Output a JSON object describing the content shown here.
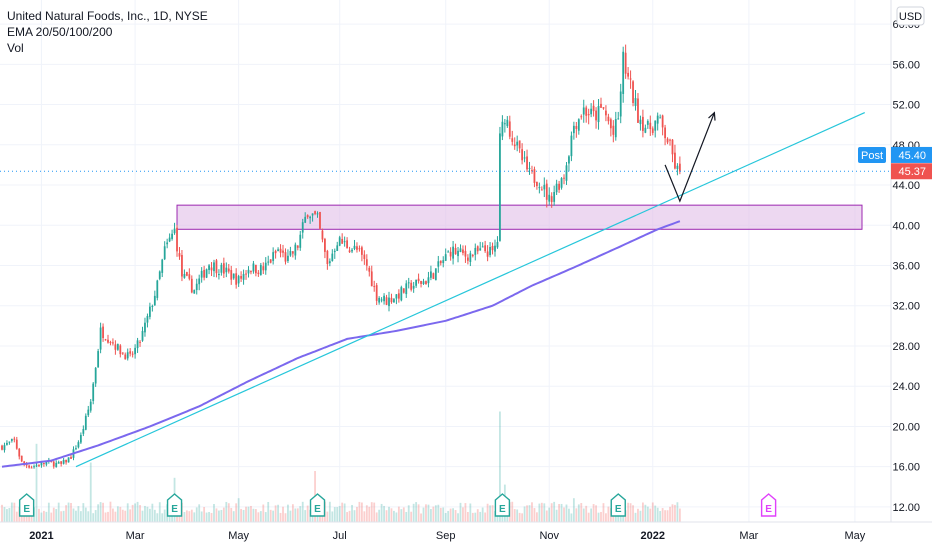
{
  "header": {
    "title": "United Natural Foods, Inc., 1D, NYSE",
    "indicator": "EMA 20/50/100/200",
    "volume_label": "Vol"
  },
  "axis": {
    "currency": "USD",
    "y_ticks": [
      "60.00",
      "56.00",
      "52.00",
      "48.00",
      "44.00",
      "40.00",
      "36.00",
      "32.00",
      "28.00",
      "24.00",
      "20.00",
      "16.00",
      "12.00"
    ],
    "x_ticks": [
      {
        "label": "2021",
        "bold": true,
        "idx": 16
      },
      {
        "label": "Mar",
        "bold": false,
        "idx": 54
      },
      {
        "label": "May",
        "bold": false,
        "idx": 96
      },
      {
        "label": "Jul",
        "bold": false,
        "idx": 137
      },
      {
        "label": "Sep",
        "bold": false,
        "idx": 180
      },
      {
        "label": "Nov",
        "bold": false,
        "idx": 222
      },
      {
        "label": "2022",
        "bold": true,
        "idx": 264
      },
      {
        "label": "Mar",
        "bold": false,
        "idx": 303
      },
      {
        "label": "May",
        "bold": false,
        "idx": 346
      }
    ]
  },
  "price_tags": {
    "post_label": "Post",
    "post_value": "45.40",
    "last_value": "45.37"
  },
  "colors": {
    "up": "#26a69a",
    "down": "#ef5350",
    "ema": "#7b68ee",
    "trendline": "#26c6da",
    "zone_fill": "#e1bee7",
    "zone_border": "#9c27b0",
    "post_tag": "#2196f3",
    "last_tag": "#ef5350",
    "earnings_past": "#26a69a",
    "earnings_future": "#e040fb"
  },
  "events": {
    "earnings_label": "E",
    "past_idx": [
      10,
      70,
      128,
      203,
      250
    ],
    "future_idx": [
      311
    ]
  },
  "chart_data": {
    "type": "candlestick",
    "title": "United Natural Foods, Inc., 1D, NYSE",
    "ylim": [
      10.5,
      61.5
    ],
    "x_range": [
      "2020-12-10",
      "2022-05-20"
    ],
    "anchors": [
      [
        0,
        18.0
      ],
      [
        5,
        18.6
      ],
      [
        8,
        16.4
      ],
      [
        12,
        16.0
      ],
      [
        18,
        16.4
      ],
      [
        24,
        16.2
      ],
      [
        28,
        17.0
      ],
      [
        32,
        19.0
      ],
      [
        36,
        22.5
      ],
      [
        40,
        29.5
      ],
      [
        44,
        28.6
      ],
      [
        48,
        27.5
      ],
      [
        52,
        26.8
      ],
      [
        56,
        28.5
      ],
      [
        60,
        31.5
      ],
      [
        63,
        34.0
      ],
      [
        66,
        37.5
      ],
      [
        70,
        39.5
      ],
      [
        73,
        35.0
      ],
      [
        78,
        33.6
      ],
      [
        84,
        36.2
      ],
      [
        90,
        35.5
      ],
      [
        96,
        34.5
      ],
      [
        100,
        35.8
      ],
      [
        106,
        35.6
      ],
      [
        112,
        37.5
      ],
      [
        116,
        36.5
      ],
      [
        120,
        38.0
      ],
      [
        124,
        41.5
      ],
      [
        128,
        40.5
      ],
      [
        132,
        36.0
      ],
      [
        136,
        38.5
      ],
      [
        140,
        38.0
      ],
      [
        144,
        37.5
      ],
      [
        148,
        36.0
      ],
      [
        152,
        33.0
      ],
      [
        156,
        32.5
      ],
      [
        160,
        33.0
      ],
      [
        166,
        34.0
      ],
      [
        172,
        34.5
      ],
      [
        176,
        35.5
      ],
      [
        182,
        37.5
      ],
      [
        188,
        37.0
      ],
      [
        192,
        37.2
      ],
      [
        196,
        37.5
      ],
      [
        199,
        37.2
      ],
      [
        201,
        38.5
      ],
      [
        202,
        48.5
      ],
      [
        204,
        51.0
      ],
      [
        206,
        49.5
      ],
      [
        210,
        47.0
      ],
      [
        214,
        45.0
      ],
      [
        218,
        44.5
      ],
      [
        222,
        42.5
      ],
      [
        224,
        43.5
      ],
      [
        228,
        45.0
      ],
      [
        232,
        50.0
      ],
      [
        236,
        51.5
      ],
      [
        240,
        50.8
      ],
      [
        244,
        51.5
      ],
      [
        248,
        49.0
      ],
      [
        250,
        50.5
      ],
      [
        252,
        56.5
      ],
      [
        254,
        54.5
      ],
      [
        258,
        51.0
      ],
      [
        262,
        49.5
      ],
      [
        266,
        50.5
      ],
      [
        270,
        48.5
      ],
      [
        273,
        46.0
      ],
      [
        275,
        44.8
      ]
    ],
    "ema_anchors": [
      [
        0,
        16.0
      ],
      [
        20,
        16.6
      ],
      [
        40,
        18.2
      ],
      [
        60,
        20.0
      ],
      [
        80,
        22.0
      ],
      [
        100,
        24.5
      ],
      [
        120,
        26.8
      ],
      [
        140,
        28.7
      ],
      [
        160,
        29.5
      ],
      [
        180,
        30.5
      ],
      [
        199,
        32.0
      ],
      [
        215,
        34.0
      ],
      [
        232,
        35.8
      ],
      [
        250,
        37.8
      ],
      [
        266,
        39.6
      ],
      [
        275,
        40.4
      ]
    ],
    "volume_peaks": [
      [
        14,
        4.6
      ],
      [
        36,
        3.5
      ],
      [
        70,
        2.6
      ],
      [
        96,
        1.4
      ],
      [
        127,
        3.0
      ],
      [
        202,
        6.5
      ],
      [
        204,
        2.2
      ],
      [
        232,
        1.4
      ],
      [
        250,
        1.5
      ]
    ],
    "support_zone": [
      39.6,
      42.0
    ],
    "trendline": {
      "from_idx": 30,
      "from_value": 16.0,
      "to_idx": 350,
      "to_value": 51.2
    },
    "projection": [
      [
        269,
        46.0
      ],
      [
        275,
        42.4
      ],
      [
        289,
        51.2
      ]
    ]
  }
}
